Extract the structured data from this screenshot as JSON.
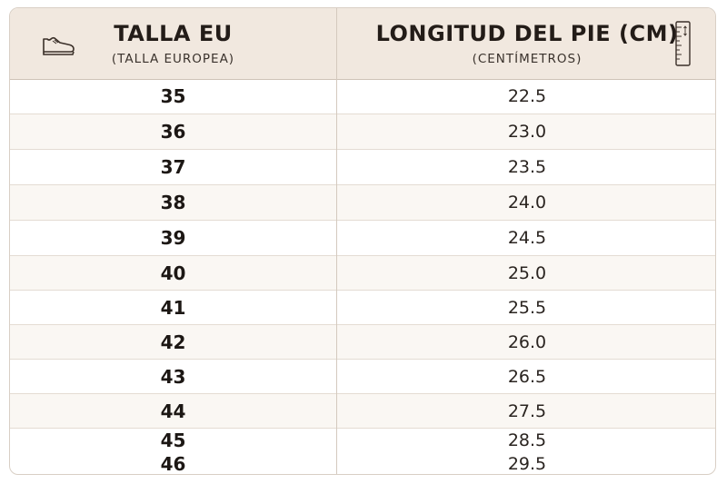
{
  "header": {
    "size_title": "TALLA EU",
    "size_subtitle": "(TALLA EUROPEA)",
    "length_title": "LONGITUD DEL PIE (CM)",
    "length_subtitle": "(CENTÍMETROS)",
    "left_icon": "shoe-icon",
    "right_icon": "ruler-icon"
  },
  "rows": [
    {
      "size": "35",
      "length": "22.5"
    },
    {
      "size": "36",
      "length": "23.0"
    },
    {
      "size": "37",
      "length": "23.5"
    },
    {
      "size": "38",
      "length": "24.0"
    },
    {
      "size": "39",
      "length": "24.5"
    },
    {
      "size": "40",
      "length": "25.0"
    },
    {
      "size": "41",
      "length": "25.5"
    },
    {
      "size": "42",
      "length": "26.0"
    },
    {
      "size": "43",
      "length": "26.5"
    },
    {
      "size": "44",
      "length": "27.5"
    },
    {
      "size": "45",
      "length": "28.5"
    },
    {
      "size": "46",
      "length": "29.5"
    }
  ],
  "colors": {
    "header_bg": "#f1e8df",
    "border": "#d9cfc5",
    "alt_row": "#faf7f3",
    "text": "#1f1a17"
  }
}
